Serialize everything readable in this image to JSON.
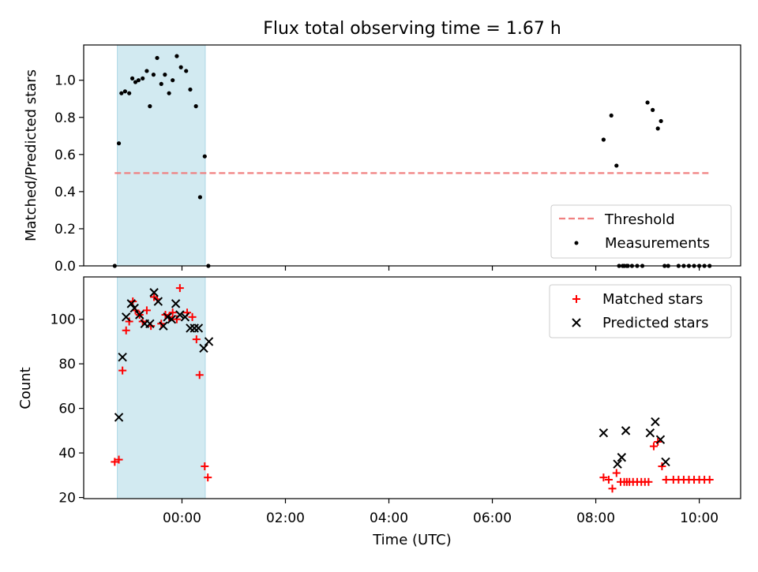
{
  "colors": {
    "threshold": "#f08080",
    "measurement": "#000000",
    "matched": "#ff0000",
    "predicted": "#000000",
    "band": "#add8e6"
  },
  "chart_data": [
    {
      "type": "scatter",
      "title": "Flux total observing time = 1.67 h",
      "xlabel": "",
      "ylabel": "Matched/Predicted stars",
      "xlim": [
        -1.9,
        10.8
      ],
      "ylim": [
        0,
        1.19
      ],
      "yticks": [
        0.0,
        0.2,
        0.4,
        0.6,
        0.8,
        1.0
      ],
      "ytick_labels": [
        "0.0",
        "0.2",
        "0.4",
        "0.6",
        "0.8",
        "1.0"
      ],
      "xticks": [
        0,
        2,
        4,
        6,
        8,
        10
      ],
      "xtick_labels": [
        "",
        "",
        "",
        "",
        "",
        ""
      ],
      "shaded_span": [
        -1.25,
        0.45
      ],
      "threshold": {
        "name": "Threshold",
        "value": 0.5,
        "x_range": [
          -1.3,
          10.2
        ]
      },
      "legend": {
        "position": "lower-right",
        "entries": [
          "Threshold",
          "Measurements"
        ]
      },
      "grid": false,
      "series": [
        {
          "name": "Measurements",
          "marker": "dot",
          "x": [
            -1.3,
            -1.22,
            -1.17,
            -1.1,
            -1.02,
            -0.96,
            -0.9,
            -0.84,
            -0.76,
            -0.68,
            -0.62,
            -0.55,
            -0.48,
            -0.4,
            -0.33,
            -0.25,
            -0.18,
            -0.1,
            -0.02,
            0.08,
            0.16,
            0.27,
            0.35,
            0.44,
            0.51,
            8.15,
            8.3,
            8.4,
            8.45,
            8.52,
            8.6,
            8.8,
            8.9,
            9.0,
            9.1,
            9.2,
            9.26,
            9.33,
            9.4,
            9.6,
            9.7,
            9.8,
            9.9,
            10.0,
            10.1,
            10.2,
            8.55,
            8.62,
            8.7
          ],
          "y": [
            0.0,
            0.66,
            0.93,
            0.94,
            0.93,
            1.01,
            0.99,
            1.0,
            1.01,
            1.05,
            0.86,
            1.03,
            1.12,
            0.98,
            1.03,
            0.93,
            1.0,
            1.13,
            1.07,
            1.05,
            0.95,
            0.86,
            0.37,
            0.59,
            0.0,
            0.68,
            0.81,
            0.54,
            0.0,
            0.0,
            0.0,
            0.0,
            0.0,
            0.88,
            0.84,
            0.74,
            0.78,
            0.0,
            0.0,
            0.0,
            0.0,
            0.0,
            0.0,
            0.0,
            0.0,
            0.0,
            0.0,
            0.0,
            0.0
          ]
        }
      ]
    },
    {
      "type": "scatter",
      "title": "",
      "xlabel": "Time (UTC)",
      "ylabel": "Count",
      "xlim": [
        -1.9,
        10.8
      ],
      "ylim": [
        19.5,
        119
      ],
      "yticks": [
        20,
        40,
        60,
        80,
        100
      ],
      "ytick_labels": [
        "20",
        "40",
        "60",
        "80",
        "100"
      ],
      "xticks": [
        0,
        2,
        4,
        6,
        8,
        10
      ],
      "xtick_labels": [
        "00:00",
        "02:00",
        "04:00",
        "06:00",
        "08:00",
        "10:00"
      ],
      "shaded_span": [
        -1.25,
        0.45
      ],
      "legend": {
        "position": "upper-right",
        "entries": [
          "Matched stars",
          "Predicted stars"
        ]
      },
      "grid": false,
      "series": [
        {
          "name": "Matched stars",
          "marker": "plus",
          "x": [
            -1.3,
            -1.22,
            -1.15,
            -1.08,
            -1.02,
            -0.95,
            -0.9,
            -0.82,
            -0.76,
            -0.68,
            -0.6,
            -0.54,
            -0.48,
            -0.4,
            -0.32,
            -0.25,
            -0.18,
            -0.1,
            -0.04,
            0.1,
            0.2,
            0.28,
            0.34,
            0.44,
            0.5,
            8.15,
            8.25,
            8.32,
            8.4,
            8.48,
            8.55,
            8.6,
            8.65,
            8.72,
            8.8,
            8.88,
            8.95,
            9.02,
            9.12,
            9.2,
            9.28,
            9.36,
            9.5,
            9.6,
            9.7,
            9.8,
            9.9,
            10.0,
            10.1,
            10.2
          ],
          "y": [
            36,
            37,
            77,
            95,
            99,
            108,
            104,
            102,
            99,
            104,
            97,
            110,
            109,
            98,
            102,
            101,
            103,
            100,
            114,
            103,
            101,
            91,
            75,
            34,
            29,
            29,
            28,
            24,
            31,
            27,
            27,
            27,
            27,
            27,
            27,
            27,
            27,
            27,
            43,
            45,
            34,
            28,
            28,
            28,
            28,
            28,
            28,
            28,
            28,
            28
          ],
          "color": "#ff0000"
        },
        {
          "name": "Predicted stars",
          "marker": "x",
          "x": [
            -1.22,
            -1.15,
            -1.08,
            -0.98,
            -0.92,
            -0.82,
            -0.72,
            -0.62,
            -0.54,
            -0.46,
            -0.36,
            -0.28,
            -0.2,
            -0.12,
            -0.04,
            0.06,
            0.16,
            0.24,
            0.32,
            0.42,
            0.52,
            8.15,
            8.42,
            8.5,
            8.58,
            9.05,
            9.15,
            9.25,
            9.35
          ],
          "y": [
            56,
            83,
            101,
            107,
            105,
            102,
            98,
            98,
            112,
            108,
            97,
            101,
            100,
            107,
            102,
            101,
            96,
            96,
            96,
            87,
            90,
            49,
            35,
            38,
            50,
            49,
            54,
            46,
            36
          ],
          "color": "#000000"
        }
      ]
    }
  ]
}
